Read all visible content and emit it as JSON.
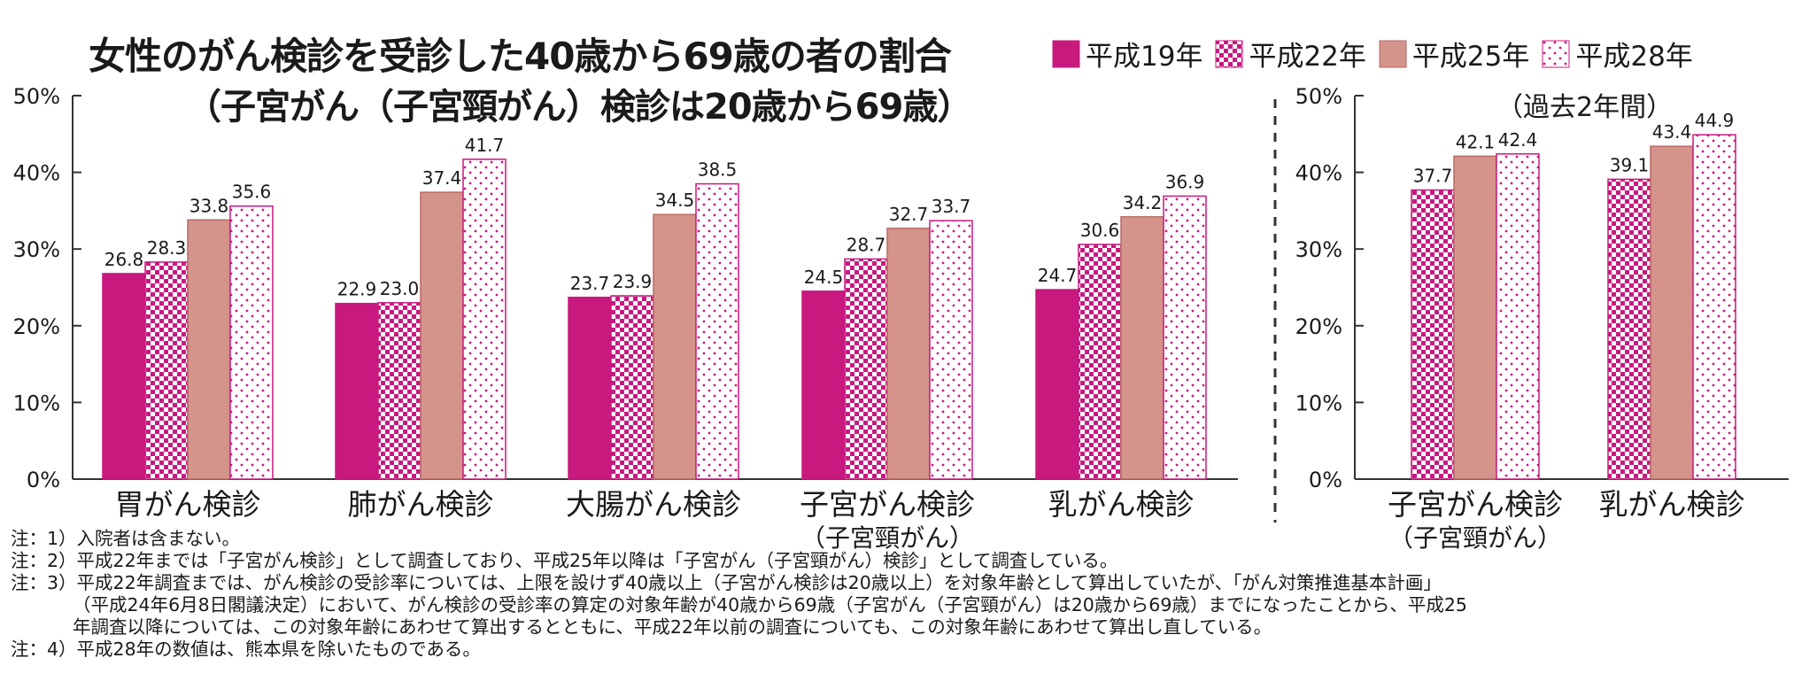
{
  "title": "女性のがん検診を受診した40歳から69歳の者の割合",
  "subtitle": "（子宮がん（子宮頸がん）検診は20歳から69歳）",
  "legend": [
    "平成19年",
    "平成22年",
    "平成25年",
    "平成28年"
  ],
  "colors": {
    "h19": "#c8197f",
    "h22": "#c8197f",
    "h25": "#d4938b",
    "h28": "#c8197f",
    "axis": "#333333",
    "text": "#1a1a1a"
  },
  "chart_data": [
    {
      "type": "bar",
      "categories": [
        "胃がん検診",
        "肺がん検診",
        "大腸がん検診",
        "子宮がん検診（子宮頸がん）",
        "乳がん検診"
      ],
      "series": [
        {
          "name": "平成19年",
          "values": [
            26.8,
            22.9,
            23.7,
            24.5,
            24.7
          ]
        },
        {
          "name": "平成22年",
          "values": [
            28.3,
            23.0,
            23.9,
            28.7,
            30.6
          ]
        },
        {
          "name": "平成25年",
          "values": [
            33.8,
            37.4,
            34.5,
            32.7,
            34.2
          ]
        },
        {
          "name": "平成28年",
          "values": [
            35.6,
            41.7,
            38.5,
            33.7,
            36.9
          ]
        }
      ],
      "yticks": [
        "0%",
        "10%",
        "20%",
        "30%",
        "40%",
        "50%"
      ],
      "ylim": [
        0,
        50
      ],
      "grid": false,
      "legend": "top-right"
    },
    {
      "type": "bar",
      "subtitle": "（過去2年間）",
      "categories": [
        "子宮がん検診（子宮頸がん）",
        "乳がん検診"
      ],
      "series": [
        {
          "name": "平成22年",
          "values": [
            37.7,
            39.1
          ]
        },
        {
          "name": "平成25年",
          "values": [
            42.1,
            43.4
          ]
        },
        {
          "name": "平成28年",
          "values": [
            42.4,
            44.9
          ]
        }
      ],
      "yticks": [
        "0%",
        "10%",
        "20%",
        "30%",
        "40%",
        "50%"
      ],
      "ylim": [
        0,
        50
      ],
      "grid": false
    }
  ],
  "notes": [
    "注：1）入院者は含まない。",
    "注：2）平成22年までは「子宮がん検診」として調査しており、平成25年以降は「子宮がん（子宮頸がん）検診」として調査している。",
    "注：3）平成22年調査までは、がん検診の受診率については、上限を設けず40歳以上（子宮がん検診は20歳以上）を対象年齢として算出していたが、「がん対策推進基本計画」",
    "（平成24年6月8日閣議決定）において、がん検診の受診率の算定の対象年齢が40歳から69歳（子宮がん（子宮頸がん）は20歳から69歳）までになったことから、平成25",
    "年調査以降については、この対象年齢にあわせて算出するとともに、平成22年以前の調査についても、この対象年齢にあわせて算出し直している。",
    "注：4）平成28年の数値は、熊本県を除いたものである。"
  ]
}
